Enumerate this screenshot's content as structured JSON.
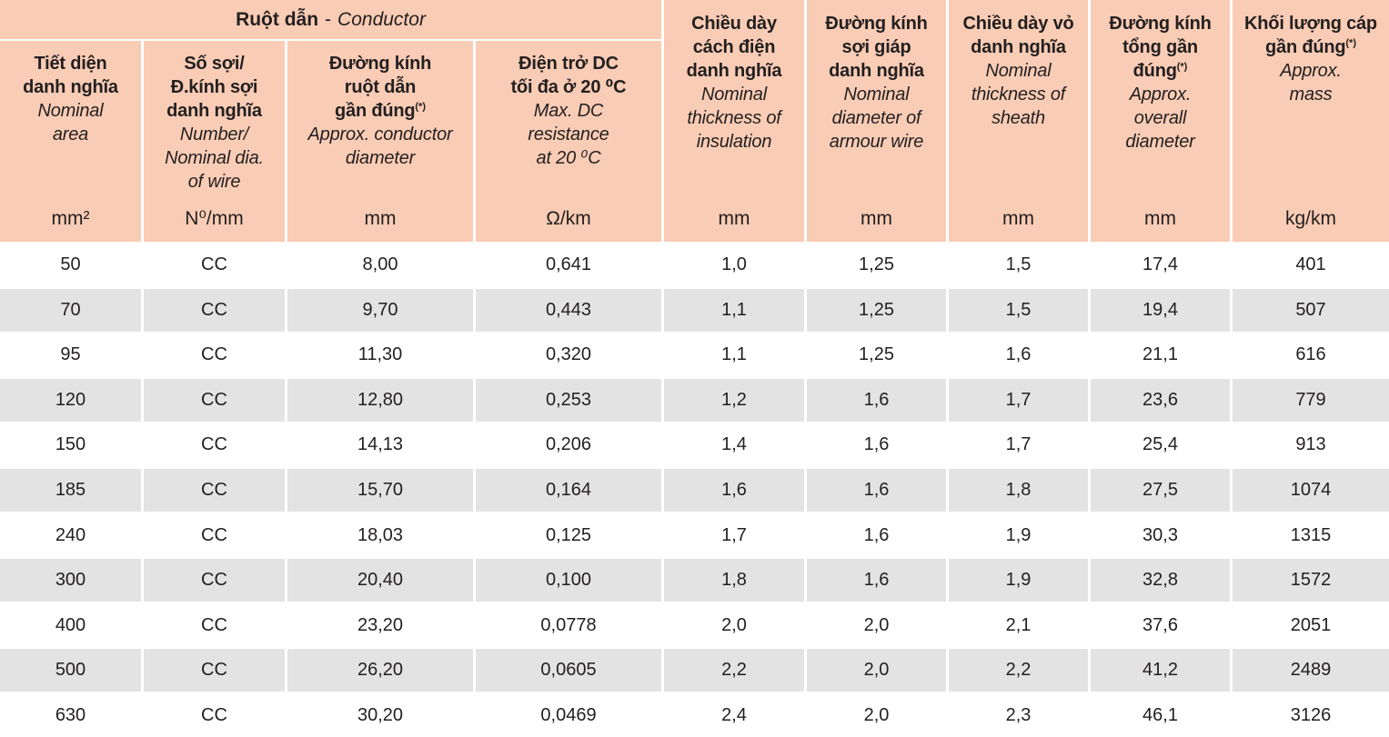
{
  "table": {
    "group_header": {
      "vi": "Ruột dẫn",
      "sep": "-",
      "en": "Conductor"
    },
    "columns": [
      {
        "vi": "Tiết diện\ndanh nghĩa",
        "en": "Nominal\narea",
        "unit": "mm²"
      },
      {
        "vi": "Số sợi/\nĐ.kính sợi\ndanh nghĩa",
        "en": "Number/\nNominal dia.\nof wire",
        "unit": "N⁰/mm"
      },
      {
        "vi": "Đường kính\nruột dẫn\ngần đúng(*)",
        "en": "Approx. conductor\ndiameter",
        "unit": "mm"
      },
      {
        "vi": "Điện trở DC\ntối đa ở 20 ⁰C",
        "en": "Max. DC\nresistance\nat 20 ⁰C",
        "unit": "Ω/km"
      },
      {
        "vi": "Chiều dày\ncách điện\ndanh nghĩa",
        "en": "Nominal\nthickness of\ninsulation",
        "unit": "mm"
      },
      {
        "vi": "Đường kính\nsợi giáp\ndanh nghĩa",
        "en": "Nominal\ndiameter of\narmour wire",
        "unit": "mm"
      },
      {
        "vi": "Chiều dày vỏ\ndanh nghĩa",
        "en": "Nominal\nthickness of\nsheath",
        "unit": "mm"
      },
      {
        "vi": "Đường kính\ntổng gần\nđúng(*)",
        "en": "Approx.\noverall\ndiameter",
        "unit": "mm"
      },
      {
        "vi": "Khối lượng cáp\ngần đúng(*)",
        "en": "Approx.\nmass",
        "unit": "kg/km"
      }
    ],
    "rows": [
      [
        "50",
        "CC",
        "8,00",
        "0,641",
        "1,0",
        "1,25",
        "1,5",
        "17,4",
        "401"
      ],
      [
        "70",
        "CC",
        "9,70",
        "0,443",
        "1,1",
        "1,25",
        "1,5",
        "19,4",
        "507"
      ],
      [
        "95",
        "CC",
        "11,30",
        "0,320",
        "1,1",
        "1,25",
        "1,6",
        "21,1",
        "616"
      ],
      [
        "120",
        "CC",
        "12,80",
        "0,253",
        "1,2",
        "1,6",
        "1,7",
        "23,6",
        "779"
      ],
      [
        "150",
        "CC",
        "14,13",
        "0,206",
        "1,4",
        "1,6",
        "1,7",
        "25,4",
        "913"
      ],
      [
        "185",
        "CC",
        "15,70",
        "0,164",
        "1,6",
        "1,6",
        "1,8",
        "27,5",
        "1074"
      ],
      [
        "240",
        "CC",
        "18,03",
        "0,125",
        "1,7",
        "1,6",
        "1,9",
        "30,3",
        "1315"
      ],
      [
        "300",
        "CC",
        "20,40",
        "0,100",
        "1,8",
        "1,6",
        "1,9",
        "32,8",
        "1572"
      ],
      [
        "400",
        "CC",
        "23,20",
        "0,0778",
        "2,0",
        "2,0",
        "2,1",
        "37,6",
        "2051"
      ],
      [
        "500",
        "CC",
        "26,20",
        "0,0605",
        "2,2",
        "2,0",
        "2,2",
        "41,2",
        "2489"
      ],
      [
        "630",
        "CC",
        "30,20",
        "0,0469",
        "2,4",
        "2,0",
        "2,3",
        "46,1",
        "3126"
      ]
    ],
    "colors": {
      "header_bg": "#f9ccb5",
      "row_bg": "#ffffff",
      "row_alt_bg": "#e3e3e3",
      "separator": "#ffffff",
      "text": "#231f20"
    }
  }
}
